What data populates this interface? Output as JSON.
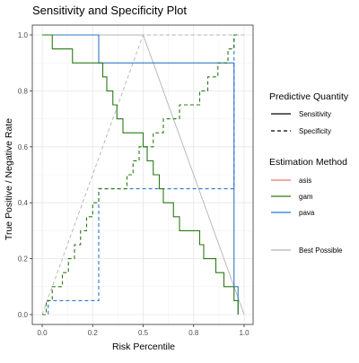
{
  "chart_data": {
    "type": "line",
    "title": "Sensitivity and Specificity Plot",
    "xlabel": "Risk Percentile",
    "ylabel": "True Positive / Negative Rate",
    "xlim": [
      0,
      1
    ],
    "ylim": [
      0,
      1
    ],
    "x_ticks": [
      "0.0",
      "0.25",
      "0.5",
      "0.75",
      "1.0"
    ],
    "x_tick_labels": [
      "0.0",
      "0.2",
      "0.5",
      "0.8",
      "1.0"
    ],
    "y_tick_labels": [
      "0.0",
      "0.2",
      "0.4",
      "0.6",
      "0.8",
      "1.0"
    ],
    "grid": true,
    "legend": {
      "placement": "right",
      "linetype_title": "Predictive Quantity",
      "linetype_items": [
        {
          "label": "Sensitivity",
          "dash": "solid"
        },
        {
          "label": "Specificity",
          "dash": "dashed"
        }
      ],
      "method_title": "Estimation Method",
      "method_items": [
        {
          "label": "asis",
          "color": "#E8766D"
        },
        {
          "label": "gam",
          "color": "#2A7A15"
        },
        {
          "label": "pava",
          "color": "#2E78C8"
        }
      ],
      "best_label": "Best Possible",
      "best_color": "#B3B3B3"
    },
    "series": [
      {
        "name": "gam",
        "quantity": "Sensitivity",
        "color": "#2A7A15",
        "dash": "solid",
        "points": [
          [
            0,
            1
          ],
          [
            0.05,
            1
          ],
          [
            0.05,
            0.95
          ],
          [
            0.15,
            0.95
          ],
          [
            0.15,
            0.9
          ],
          [
            0.3,
            0.9
          ],
          [
            0.3,
            0.85
          ],
          [
            0.32,
            0.85
          ],
          [
            0.32,
            0.8
          ],
          [
            0.35,
            0.8
          ],
          [
            0.35,
            0.75
          ],
          [
            0.37,
            0.75
          ],
          [
            0.37,
            0.7
          ],
          [
            0.4,
            0.7
          ],
          [
            0.4,
            0.65
          ],
          [
            0.5,
            0.65
          ],
          [
            0.5,
            0.6
          ],
          [
            0.52,
            0.6
          ],
          [
            0.52,
            0.55
          ],
          [
            0.55,
            0.55
          ],
          [
            0.55,
            0.5
          ],
          [
            0.58,
            0.5
          ],
          [
            0.58,
            0.45
          ],
          [
            0.6,
            0.45
          ],
          [
            0.6,
            0.4
          ],
          [
            0.65,
            0.4
          ],
          [
            0.65,
            0.35
          ],
          [
            0.68,
            0.35
          ],
          [
            0.68,
            0.3
          ],
          [
            0.78,
            0.3
          ],
          [
            0.78,
            0.25
          ],
          [
            0.8,
            0.25
          ],
          [
            0.8,
            0.2
          ],
          [
            0.86,
            0.2
          ],
          [
            0.86,
            0.15
          ],
          [
            0.9,
            0.15
          ],
          [
            0.9,
            0.1
          ],
          [
            0.95,
            0.1
          ],
          [
            0.95,
            0.05
          ],
          [
            0.97,
            0.05
          ],
          [
            0.97,
            0
          ]
        ]
      },
      {
        "name": "gam",
        "quantity": "Specificity",
        "color": "#2A7A15",
        "dash": "dashed",
        "points": [
          [
            0,
            0
          ],
          [
            0.02,
            0
          ],
          [
            0.02,
            0.05
          ],
          [
            0.05,
            0.05
          ],
          [
            0.05,
            0.1
          ],
          [
            0.1,
            0.1
          ],
          [
            0.1,
            0.15
          ],
          [
            0.13,
            0.15
          ],
          [
            0.13,
            0.2
          ],
          [
            0.16,
            0.2
          ],
          [
            0.16,
            0.25
          ],
          [
            0.19,
            0.25
          ],
          [
            0.19,
            0.3
          ],
          [
            0.22,
            0.3
          ],
          [
            0.22,
            0.35
          ],
          [
            0.25,
            0.35
          ],
          [
            0.25,
            0.4
          ],
          [
            0.28,
            0.4
          ],
          [
            0.28,
            0.45
          ],
          [
            0.42,
            0.45
          ],
          [
            0.42,
            0.5
          ],
          [
            0.45,
            0.5
          ],
          [
            0.45,
            0.55
          ],
          [
            0.48,
            0.55
          ],
          [
            0.48,
            0.6
          ],
          [
            0.55,
            0.6
          ],
          [
            0.55,
            0.65
          ],
          [
            0.6,
            0.65
          ],
          [
            0.6,
            0.7
          ],
          [
            0.68,
            0.7
          ],
          [
            0.68,
            0.75
          ],
          [
            0.78,
            0.75
          ],
          [
            0.78,
            0.8
          ],
          [
            0.82,
            0.8
          ],
          [
            0.82,
            0.85
          ],
          [
            0.87,
            0.85
          ],
          [
            0.87,
            0.9
          ],
          [
            0.92,
            0.9
          ],
          [
            0.92,
            0.95
          ],
          [
            0.95,
            0.95
          ],
          [
            0.95,
            1
          ],
          [
            0.97,
            1
          ]
        ]
      },
      {
        "name": "pava",
        "quantity": "Sensitivity",
        "color": "#2E78C8",
        "dash": "solid",
        "points": [
          [
            0,
            1
          ],
          [
            0.28,
            1
          ],
          [
            0.28,
            0.9
          ],
          [
            0.95,
            0.9
          ],
          [
            0.95,
            0.1
          ],
          [
            0.97,
            0.1
          ],
          [
            0.97,
            0
          ]
        ]
      },
      {
        "name": "pava",
        "quantity": "Specificity",
        "color": "#2E78C8",
        "dash": "dashed",
        "points": [
          [
            0,
            0
          ],
          [
            0.03,
            0
          ],
          [
            0.03,
            0.05
          ],
          [
            0.28,
            0.05
          ],
          [
            0.28,
            0.45
          ],
          [
            0.95,
            0.45
          ],
          [
            0.95,
            1
          ],
          [
            0.97,
            1
          ]
        ]
      },
      {
        "name": "Best Possible",
        "quantity": "Sensitivity",
        "color": "#B3B3B3",
        "dash": "solid",
        "points": [
          [
            0,
            1
          ],
          [
            0.5,
            1
          ],
          [
            1,
            0
          ]
        ]
      },
      {
        "name": "Best Possible",
        "quantity": "Specificity",
        "color": "#B3B3B3",
        "dash": "dashed",
        "points": [
          [
            0,
            0
          ],
          [
            0.5,
            1
          ],
          [
            1,
            1
          ]
        ]
      }
    ]
  }
}
